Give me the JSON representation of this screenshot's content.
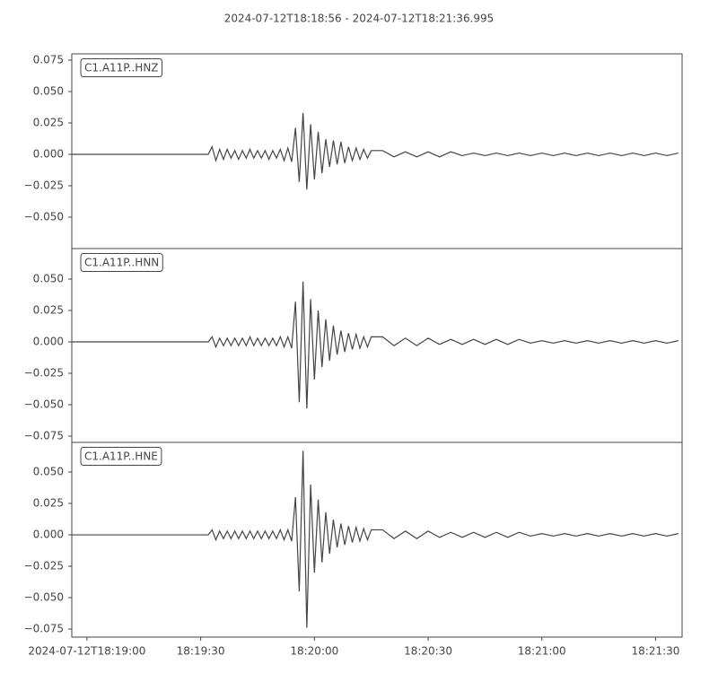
{
  "title": "2024-07-12T18:18:56  -  2024-07-12T18:21:36.995",
  "chart_data": [
    {
      "type": "line",
      "xlim": [
        "18:18:56",
        "18:21:36.995"
      ],
      "ylim": [
        -0.075,
        0.08
      ],
      "yticks": [
        {
          "value": -0.05,
          "label": "−0.050"
        },
        {
          "value": -0.025,
          "label": "−0.025"
        },
        {
          "value": 0,
          "label": "0.000"
        },
        0.025,
        {
          "value": 0.05,
          "label": "0.050"
        },
        0.075
      ],
      "x": [
        "18:18:56",
        "18:19:32",
        "18:19:33",
        "18:19:34",
        "18:19:35",
        "18:19:36",
        "18:19:37",
        "18:19:38",
        "18:19:39",
        "18:19:40",
        "18:19:41",
        "18:19:42",
        "18:19:43",
        "18:19:44",
        "18:19:45",
        "18:19:46",
        "18:19:47",
        "18:19:48",
        "18:19:49",
        "18:19:50",
        "18:19:51",
        "18:19:52",
        "18:19:53",
        "18:19:54",
        "18:19:55",
        "18:19:56",
        "18:19:57",
        "18:19:58",
        "18:19:59",
        "18:20:00",
        "18:20:01",
        "18:20:02",
        "18:20:03",
        "18:20:04",
        "18:20:05",
        "18:20:06",
        "18:20:07",
        "18:20:08",
        "18:20:09",
        "18:20:10",
        "18:20:11",
        "18:20:12",
        "18:20:13",
        "18:20:14",
        "18:20:15",
        "18:20:18",
        "18:20:21",
        "18:20:24",
        "18:20:27",
        "18:20:30",
        "18:20:33",
        "18:20:36",
        "18:20:39",
        "18:20:42",
        "18:20:45",
        "18:20:48",
        "18:20:51",
        "18:20:54",
        "18:20:57",
        "18:21:00",
        "18:21:03",
        "18:21:06",
        "18:21:09",
        "18:21:12",
        "18:21:15",
        "18:21:18",
        "18:21:21",
        "18:21:24",
        "18:21:27",
        "18:21:30",
        "18:21:33",
        "18:21:36"
      ],
      "series": [
        {
          "name": "C1.A11P..HNZ",
          "color": "#444444",
          "values": [
            0,
            0,
            0.006,
            -0.005,
            0.004,
            -0.004,
            0.004,
            -0.003,
            0.003,
            -0.004,
            0.003,
            -0.003,
            0.004,
            -0.003,
            0.003,
            -0.003,
            0.003,
            -0.004,
            0.003,
            -0.003,
            0.004,
            -0.005,
            0.005,
            -0.006,
            0.021,
            -0.022,
            0.033,
            -0.028,
            0.024,
            -0.02,
            0.018,
            -0.015,
            0.012,
            -0.01,
            0.011,
            -0.008,
            0.01,
            -0.007,
            0.006,
            -0.005,
            0.005,
            -0.004,
            0.004,
            -0.003,
            0.003,
            0.003,
            -0.002,
            0.002,
            -0.002,
            0.002,
            -0.002,
            0.002,
            -0.001,
            0.001,
            -0.001,
            0.001,
            -0.001,
            0.001,
            -0.001,
            0.001,
            -0.001,
            0.001,
            -0.001,
            0.001,
            -0.001,
            0.001,
            -0.001,
            0.001,
            -0.001,
            0.001,
            -0.001,
            0.001
          ]
        }
      ]
    },
    {
      "type": "line",
      "xlim": [
        "18:18:56",
        "18:21:36.995"
      ],
      "ylim": [
        -0.08,
        0.0743
      ],
      "yticks": [
        {
          "value": -0.075,
          "label": "−0.075"
        },
        {
          "value": -0.05,
          "label": "−0.050"
        },
        {
          "value": -0.025,
          "label": "−0.025"
        },
        {
          "value": 0,
          "label": "0.000"
        },
        0.025,
        {
          "value": 0.05,
          "label": "0.050"
        }
      ],
      "x": [
        "18:18:56",
        "18:19:32",
        "18:19:33",
        "18:19:34",
        "18:19:35",
        "18:19:36",
        "18:19:37",
        "18:19:38",
        "18:19:39",
        "18:19:40",
        "18:19:41",
        "18:19:42",
        "18:19:43",
        "18:19:44",
        "18:19:45",
        "18:19:46",
        "18:19:47",
        "18:19:48",
        "18:19:49",
        "18:19:50",
        "18:19:51",
        "18:19:52",
        "18:19:53",
        "18:19:54",
        "18:19:55",
        "18:19:56",
        "18:19:57",
        "18:19:58",
        "18:19:59",
        "18:20:00",
        "18:20:01",
        "18:20:02",
        "18:20:03",
        "18:20:04",
        "18:20:05",
        "18:20:06",
        "18:20:07",
        "18:20:08",
        "18:20:09",
        "18:20:10",
        "18:20:11",
        "18:20:12",
        "18:20:13",
        "18:20:14",
        "18:20:15",
        "18:20:18",
        "18:20:21",
        "18:20:24",
        "18:20:27",
        "18:20:30",
        "18:20:33",
        "18:20:36",
        "18:20:39",
        "18:20:42",
        "18:20:45",
        "18:20:48",
        "18:20:51",
        "18:20:54",
        "18:20:57",
        "18:21:00",
        "18:21:03",
        "18:21:06",
        "18:21:09",
        "18:21:12",
        "18:21:15",
        "18:21:18",
        "18:21:21",
        "18:21:24",
        "18:21:27",
        "18:21:30",
        "18:21:33",
        "18:21:36"
      ],
      "series": [
        {
          "name": "C1.A11P..HNN",
          "color": "#444444",
          "values": [
            0,
            0,
            0.004,
            -0.004,
            0.003,
            -0.003,
            0.003,
            -0.003,
            0.003,
            -0.003,
            0.003,
            -0.003,
            0.004,
            -0.003,
            0.003,
            -0.003,
            0.003,
            -0.003,
            0.003,
            -0.003,
            0.004,
            -0.004,
            0.004,
            -0.005,
            0.032,
            -0.048,
            0.048,
            -0.053,
            0.034,
            -0.03,
            0.025,
            -0.02,
            0.018,
            -0.015,
            0.013,
            -0.01,
            0.009,
            -0.008,
            0.007,
            -0.006,
            0.006,
            -0.005,
            0.004,
            -0.004,
            0.004,
            0.004,
            -0.003,
            0.003,
            -0.003,
            0.003,
            -0.002,
            0.002,
            -0.002,
            0.002,
            -0.002,
            0.002,
            -0.002,
            0.002,
            -0.001,
            0.001,
            -0.001,
            0.001,
            -0.001,
            0.001,
            -0.001,
            0.001,
            -0.001,
            0.001,
            -0.001,
            0.001,
            -0.001,
            0.001
          ]
        }
      ]
    },
    {
      "type": "line",
      "xlim": [
        "18:18:56",
        "18:21:36.995"
      ],
      "ylim": [
        -0.0814,
        0.0736
      ],
      "yticks": [
        {
          "value": -0.075,
          "label": "−0.075"
        },
        {
          "value": -0.05,
          "label": "−0.050"
        },
        {
          "value": -0.025,
          "label": "−0.025"
        },
        {
          "value": 0,
          "label": "0.000"
        },
        0.025,
        {
          "value": 0.05,
          "label": "0.050"
        }
      ],
      "xticks": [
        {
          "value": "18:19:00",
          "label": "2024-07-12T18:19:00"
        },
        "18:19:30",
        "18:20:00",
        "18:20:30",
        "18:21:00",
        "18:21:30"
      ],
      "x": [
        "18:18:56",
        "18:19:32",
        "18:19:33",
        "18:19:34",
        "18:19:35",
        "18:19:36",
        "18:19:37",
        "18:19:38",
        "18:19:39",
        "18:19:40",
        "18:19:41",
        "18:19:42",
        "18:19:43",
        "18:19:44",
        "18:19:45",
        "18:19:46",
        "18:19:47",
        "18:19:48",
        "18:19:49",
        "18:19:50",
        "18:19:51",
        "18:19:52",
        "18:19:53",
        "18:19:54",
        "18:19:55",
        "18:19:56",
        "18:19:57",
        "18:19:58",
        "18:19:59",
        "18:20:00",
        "18:20:01",
        "18:20:02",
        "18:20:03",
        "18:20:04",
        "18:20:05",
        "18:20:06",
        "18:20:07",
        "18:20:08",
        "18:20:09",
        "18:20:10",
        "18:20:11",
        "18:20:12",
        "18:20:13",
        "18:20:14",
        "18:20:15",
        "18:20:18",
        "18:20:21",
        "18:20:24",
        "18:20:27",
        "18:20:30",
        "18:20:33",
        "18:20:36",
        "18:20:39",
        "18:20:42",
        "18:20:45",
        "18:20:48",
        "18:20:51",
        "18:20:54",
        "18:20:57",
        "18:21:00",
        "18:21:03",
        "18:21:06",
        "18:21:09",
        "18:21:12",
        "18:21:15",
        "18:21:18",
        "18:21:21",
        "18:21:24",
        "18:21:27",
        "18:21:30",
        "18:21:33",
        "18:21:36"
      ],
      "series": [
        {
          "name": "C1.A11P..HNE",
          "color": "#444444",
          "values": [
            0,
            0,
            0.004,
            -0.004,
            0.003,
            -0.003,
            0.003,
            -0.003,
            0.003,
            -0.003,
            0.003,
            -0.003,
            0.003,
            -0.003,
            0.003,
            -0.003,
            0.003,
            -0.003,
            0.003,
            -0.003,
            0.004,
            -0.004,
            0.004,
            -0.005,
            0.03,
            -0.045,
            0.067,
            -0.074,
            0.04,
            -0.03,
            0.028,
            -0.022,
            0.018,
            -0.015,
            0.012,
            -0.01,
            0.009,
            -0.008,
            0.007,
            -0.006,
            0.006,
            -0.005,
            0.005,
            -0.004,
            0.004,
            0.004,
            -0.003,
            0.003,
            -0.003,
            0.003,
            -0.002,
            0.002,
            -0.002,
            0.002,
            -0.002,
            0.002,
            -0.002,
            0.002,
            -0.001,
            0.001,
            -0.001,
            0.001,
            -0.001,
            0.001,
            -0.001,
            0.001,
            -0.001,
            0.001,
            -0.001,
            0.001,
            -0.001,
            0.001
          ]
        }
      ]
    }
  ]
}
